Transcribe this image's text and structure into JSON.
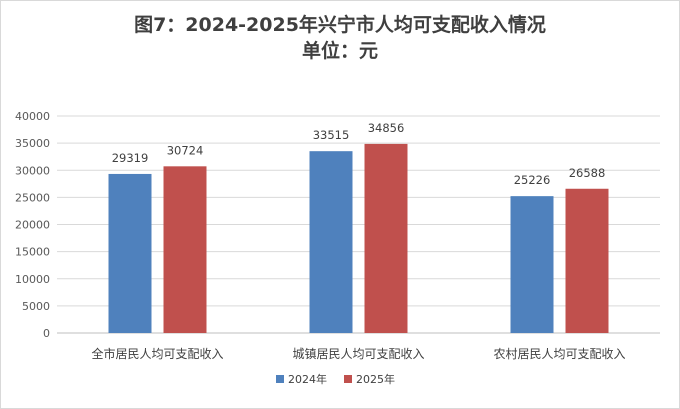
{
  "title": "图7：2024-2025年兴宁市人均可支配收入情况",
  "subtitle": "单位：元",
  "chart_data": {
    "type": "bar",
    "title": "图7：2024-2025年兴宁市人均可支配收入情况",
    "subtitle": "单位：元",
    "categories": [
      "全市居民人均可支配收入",
      "城镇居民人均可支配收入",
      "农村居民人均可支配收入"
    ],
    "series": [
      {
        "name": "2024年",
        "values": [
          29319,
          33515,
          25226
        ],
        "color": "#4F81BD"
      },
      {
        "name": "2025年",
        "values": [
          30724,
          34856,
          26588
        ],
        "color": "#C0504D"
      }
    ],
    "ylim": [
      0,
      40000
    ],
    "yticks": [
      0,
      5000,
      10000,
      15000,
      20000,
      25000,
      30000,
      35000,
      40000
    ],
    "xlabel": "",
    "ylabel": "",
    "grid": true,
    "legend": "bottom",
    "data_labels": true
  }
}
